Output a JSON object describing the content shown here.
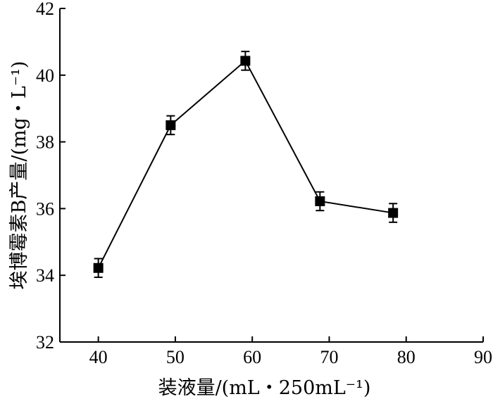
{
  "chart_data": {
    "type": "line",
    "xlabel": "装液量/(mL・250mL⁻¹)",
    "ylabel": "埃博霉素B产量/(mg・L⁻¹)",
    "xlim": [
      35,
      90
    ],
    "ylim": [
      32,
      42
    ],
    "xticks": [
      40,
      50,
      60,
      70,
      80,
      90
    ],
    "yticks": [
      32,
      34,
      36,
      38,
      40,
      42
    ],
    "grid": false,
    "series": [
      {
        "x": [
          40,
          49.4,
          59.1,
          68.8,
          78.3
        ],
        "values": [
          34.22,
          38.5,
          40.43,
          36.22,
          35.87
        ],
        "errors": [
          0.28,
          0.28,
          0.28,
          0.28,
          0.28
        ],
        "marker": "square",
        "color": "#000000"
      }
    ]
  }
}
